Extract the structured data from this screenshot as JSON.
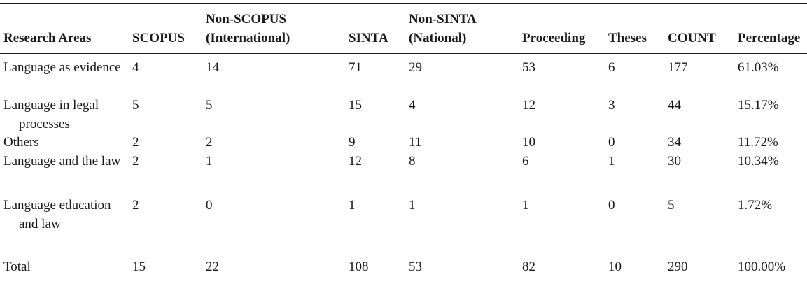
{
  "table": {
    "columns": [
      "Research Areas",
      "SCOPUS",
      "Non-SCOPUS (International)",
      "SINTA",
      "Non-SINTA (National)",
      "Proceeding",
      "Theses",
      "COUNT",
      "Percentage"
    ],
    "header": {
      "research_areas": "Research Areas",
      "scopus": "SCOPUS",
      "non_scopus_line1": "Non-SCOPUS",
      "non_scopus_line2": "(International)",
      "sinta": "SINTA",
      "non_sinta_line1": "Non-SINTA",
      "non_sinta_line2": "(National)",
      "proceeding": "Proceeding",
      "theses": "Theses",
      "count": "COUNT",
      "percentage": "Percentage"
    },
    "rows": [
      {
        "area": "Language as evidence",
        "scopus": "4",
        "non_scopus": "14",
        "sinta": "71",
        "non_sinta": "29",
        "proceeding": "53",
        "theses": "6",
        "count": "177",
        "percentage": "61.03%"
      },
      {
        "area": "Language in legal processes",
        "scopus": "5",
        "non_scopus": "5",
        "sinta": "15",
        "non_sinta": "4",
        "proceeding": "12",
        "theses": "3",
        "count": "44",
        "percentage": "15.17%"
      },
      {
        "area": "Others",
        "scopus": "2",
        "non_scopus": "2",
        "sinta": "9",
        "non_sinta": "11",
        "proceeding": "10",
        "theses": "0",
        "count": "34",
        "percentage": "11.72%"
      },
      {
        "area": "Language and the law",
        "scopus": "2",
        "non_scopus": "1",
        "sinta": "12",
        "non_sinta": "8",
        "proceeding": "6",
        "theses": "1",
        "count": "30",
        "percentage": "10.34%"
      },
      {
        "area": "Language education and law",
        "scopus": "2",
        "non_scopus": "0",
        "sinta": "1",
        "non_sinta": "1",
        "proceeding": "1",
        "theses": "0",
        "count": "5",
        "percentage": "1.72%"
      }
    ],
    "total": {
      "area": "Total",
      "scopus": "15",
      "non_scopus": "22",
      "sinta": "108",
      "non_sinta": "53",
      "proceeding": "82",
      "theses": "10",
      "count": "290",
      "percentage": "100.00%"
    }
  }
}
